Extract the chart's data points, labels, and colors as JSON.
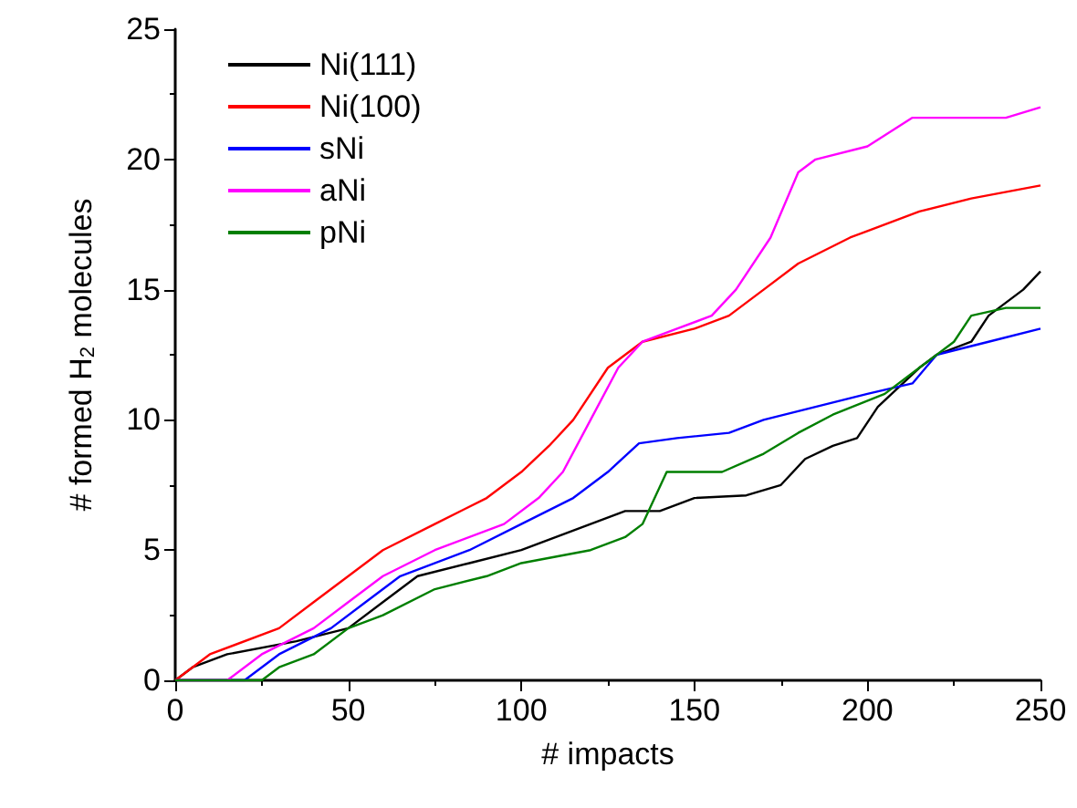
{
  "chart_data": {
    "type": "line",
    "xlabel": "# impacts",
    "ylabel": "# formed H$_{2}$ molecules",
    "xlim": [
      0,
      250
    ],
    "ylim": [
      0,
      25
    ],
    "xticks": [
      0,
      50,
      100,
      150,
      200,
      250
    ],
    "yticks": [
      0,
      5,
      10,
      15,
      20,
      25
    ],
    "grid": false,
    "legend": "top left",
    "marker": "none",
    "line_style": "solid",
    "series": [
      {
        "name": "Ni(111)",
        "color": "#000000",
        "x": [
          0,
          5,
          15,
          35,
          50,
          60,
          70,
          85,
          100,
          110,
          120,
          130,
          140,
          150,
          165,
          175,
          182,
          190,
          197,
          203,
          215,
          220,
          230,
          235,
          245,
          250
        ],
        "values": [
          0,
          0.5,
          1,
          1.5,
          2,
          3,
          4,
          4.5,
          5,
          5.5,
          6,
          6.5,
          6.5,
          7,
          7.1,
          7.5,
          8.5,
          9,
          9.3,
          10.5,
          12,
          12.5,
          13,
          14,
          15,
          15.7
        ]
      },
      {
        "name": "Ni(100)",
        "color": "#ff0000",
        "x": [
          0,
          10,
          30,
          40,
          50,
          60,
          75,
          90,
          100,
          108,
          115,
          125,
          135,
          150,
          160,
          170,
          180,
          195,
          215,
          230,
          250
        ],
        "values": [
          0,
          1,
          2,
          3,
          4,
          5,
          6,
          7,
          8,
          9,
          10,
          12,
          13,
          13.5,
          14,
          15,
          16,
          17,
          18,
          18.5,
          19
        ]
      },
      {
        "name": "sNi",
        "color": "#0000ff",
        "x": [
          0,
          20,
          30,
          45,
          55,
          65,
          85,
          100,
          115,
          125,
          134,
          145,
          160,
          170,
          185,
          200,
          213,
          220,
          235,
          250
        ],
        "values": [
          0,
          0,
          1,
          2,
          3,
          4,
          5,
          6,
          7,
          8,
          9.1,
          9.3,
          9.5,
          10,
          10.5,
          11,
          11.4,
          12.5,
          13,
          13.5
        ]
      },
      {
        "name": "aNi",
        "color": "#ff00ff",
        "x": [
          0,
          15,
          25,
          40,
          50,
          60,
          75,
          95,
          105,
          112,
          120,
          128,
          135,
          145,
          155,
          162,
          172,
          180,
          185,
          200,
          213,
          240,
          250
        ],
        "values": [
          0,
          0,
          1,
          2,
          3,
          4,
          5,
          6,
          7,
          8,
          10,
          12,
          13,
          13.5,
          14,
          15,
          17,
          19.5,
          20,
          20.5,
          21.6,
          21.6,
          22
        ]
      },
      {
        "name": "pNi",
        "color": "#007f00",
        "x": [
          0,
          25,
          30,
          40,
          50,
          60,
          75,
          90,
          100,
          120,
          130,
          135,
          142,
          158,
          170,
          180,
          190,
          205,
          215,
          225,
          230,
          240,
          250
        ],
        "values": [
          0,
          0,
          0.5,
          1,
          2,
          2.5,
          3.5,
          4,
          4.5,
          5,
          5.5,
          6,
          8,
          8,
          8.7,
          9.5,
          10.2,
          11,
          12,
          13,
          14,
          14.3,
          14.3
        ]
      }
    ]
  }
}
